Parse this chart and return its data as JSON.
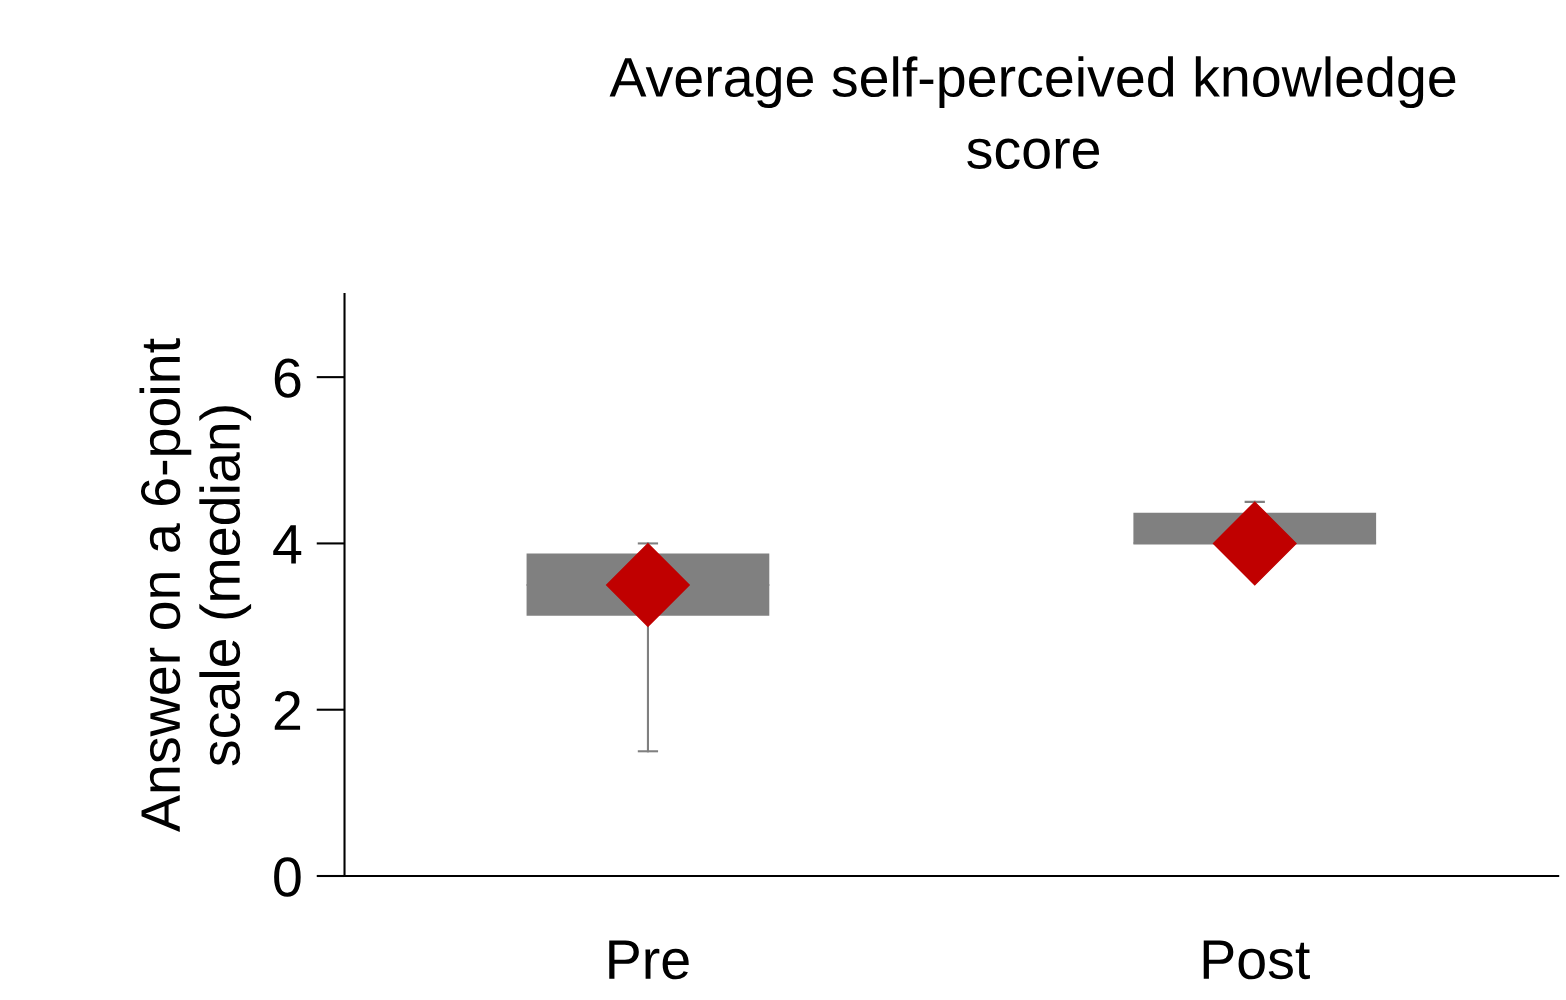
{
  "chart_data": {
    "type": "box",
    "title": "Average self-perceived knowledge\nscore",
    "ylabel": "Answer on a 6-point\nscale (median)",
    "categories": [
      "Pre",
      "Post"
    ],
    "boxes": [
      {
        "low": 1.5,
        "q1": 3.13,
        "median": 3.5,
        "q3": 3.88,
        "high": 4.0
      },
      {
        "low": 4.0,
        "q1": 4.0,
        "median": 4.0,
        "q3": 4.37,
        "high": 4.5
      }
    ],
    "color": "#808080",
    "series": [
      {
        "type": "scatter",
        "x": [
          "Pre",
          "Post"
        ],
        "values": [
          3.5,
          4.0
        ],
        "color": "#c00000",
        "marker": "diamond"
      }
    ],
    "ylim": [
      0,
      7
    ],
    "yticks": [
      0,
      2,
      4,
      6
    ],
    "grid": false,
    "legend": false
  }
}
